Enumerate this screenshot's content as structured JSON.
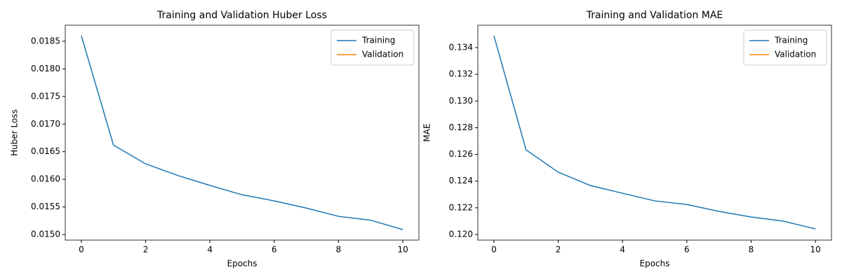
{
  "chart_data": [
    {
      "type": "line",
      "title": "Training and Validation Huber Loss",
      "xlabel": "Epochs",
      "ylabel": "Huber Loss",
      "x": [
        0,
        1,
        2,
        3,
        4,
        5,
        6,
        7,
        8,
        9,
        10
      ],
      "series": [
        {
          "name": "Training",
          "color": "#1f77b4",
          "values": [
            0.0186,
            0.01662,
            0.01628,
            0.01607,
            0.01589,
            0.01572,
            0.01561,
            0.01548,
            0.01533,
            0.01526,
            0.01509
          ]
        },
        {
          "name": "Validation",
          "color": "#ff7f0e",
          "values": [
            null,
            null,
            null,
            null,
            null,
            null,
            null,
            null,
            null,
            null,
            null
          ]
        }
      ],
      "xlim": [
        -0.5,
        10.5
      ],
      "xticks": [
        0,
        2,
        4,
        6,
        8,
        10
      ],
      "ylim": [
        0.0149,
        0.01879
      ],
      "yticks": [
        {
          "value": 0.015,
          "label": "0.0150"
        },
        {
          "value": 0.0155,
          "label": "0.0155"
        },
        {
          "value": 0.016,
          "label": "0.0160"
        },
        {
          "value": 0.0165,
          "label": "0.0165"
        },
        {
          "value": 0.017,
          "label": "0.0170"
        },
        {
          "value": 0.0175,
          "label": "0.0175"
        },
        {
          "value": 0.018,
          "label": "0.0180"
        },
        {
          "value": 0.0185,
          "label": "0.0185"
        }
      ],
      "legend": "upper right",
      "grid": false
    },
    {
      "type": "line",
      "title": "Training and Validation MAE",
      "xlabel": "Epochs",
      "ylabel": "MAE",
      "x": [
        0,
        1,
        2,
        3,
        4,
        5,
        6,
        7,
        8,
        9,
        10
      ],
      "series": [
        {
          "name": "Training",
          "color": "#1f77b4",
          "values": [
            0.13489,
            0.12634,
            0.12467,
            0.12367,
            0.12309,
            0.12252,
            0.12225,
            0.12173,
            0.12131,
            0.121,
            0.12042
          ]
        },
        {
          "name": "Validation",
          "color": "#ff7f0e",
          "values": [
            null,
            null,
            null,
            null,
            null,
            null,
            null,
            null,
            null,
            null,
            null
          ]
        }
      ],
      "xlim": [
        -0.5,
        10.5
      ],
      "xticks": [
        0,
        2,
        4,
        6,
        8,
        10
      ],
      "ylim": [
        0.11958,
        0.13568
      ],
      "yticks": [
        {
          "value": 0.12,
          "label": "0.120"
        },
        {
          "value": 0.122,
          "label": "0.122"
        },
        {
          "value": 0.124,
          "label": "0.124"
        },
        {
          "value": 0.126,
          "label": "0.126"
        },
        {
          "value": 0.128,
          "label": "0.128"
        },
        {
          "value": 0.13,
          "label": "0.130"
        },
        {
          "value": 0.132,
          "label": "0.132"
        },
        {
          "value": 0.134,
          "label": "0.134"
        }
      ],
      "legend": "upper right",
      "grid": false
    }
  ]
}
